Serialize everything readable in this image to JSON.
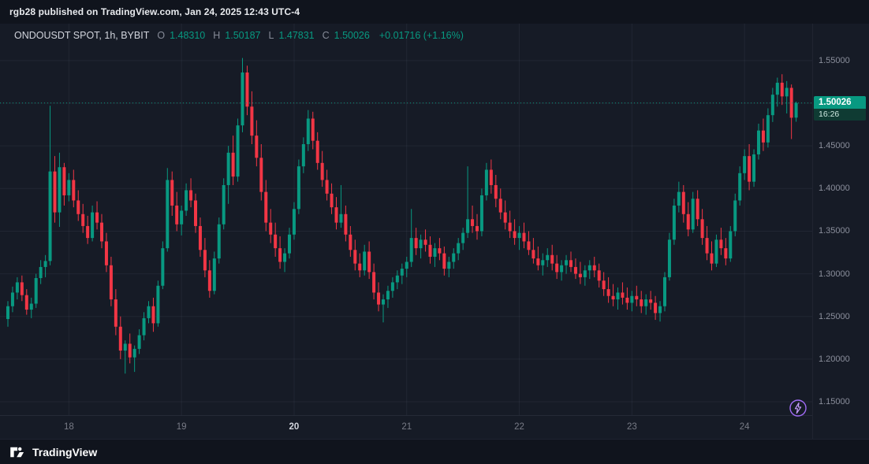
{
  "attribution": {
    "text": "rgb28 published on TradingView.com, Jan 24, 2025 12:43 UTC-4"
  },
  "legend": {
    "symbol_text": "ONDOUSDT SPOT, 1h, BYBIT",
    "open_label": "O",
    "open": "1.48310",
    "high_label": "H",
    "high": "1.50187",
    "low_label": "L",
    "low": "1.47831",
    "close_label": "C",
    "close": "1.50026",
    "change": "+0.01716 (+1.16%)"
  },
  "price_scale": {
    "labels": [
      "1.55000",
      "1.50000",
      "1.45000",
      "1.40000",
      "1.35000",
      "1.30000",
      "1.25000",
      "1.20000",
      "1.15000"
    ],
    "badge": {
      "price": "1.50026",
      "countdown": "16:26"
    }
  },
  "footer": {
    "brand": "TradingView"
  },
  "colors": {
    "up": "#089981",
    "down": "#f23645",
    "grid": "rgba(149,158,180,0.09)",
    "current_line": "#089981",
    "muted_text": "#787b86",
    "bright_text": "#d1d4dc"
  },
  "chart_data": {
    "type": "candlestick",
    "title": "ONDOUSDT SPOT, 1h, BYBIT",
    "symbol": "ONDOUSDT",
    "market": "SPOT",
    "interval": "1h",
    "exchange": "BYBIT",
    "current_price": 1.50026,
    "ylim": [
      1.1343,
      1.5933
    ],
    "x_start": 10,
    "x_step": 5.95,
    "grid": true,
    "price_ticks": [
      1.55,
      1.5,
      1.45,
      1.4,
      1.35,
      1.3,
      1.25,
      1.2,
      1.15
    ],
    "day_ticks": [
      {
        "i": 13,
        "label": "18",
        "strong": false
      },
      {
        "i": 37,
        "label": "19",
        "strong": false
      },
      {
        "i": 61,
        "label": "20",
        "strong": true
      },
      {
        "i": 85,
        "label": "21",
        "strong": false
      },
      {
        "i": 109,
        "label": "22",
        "strong": false
      },
      {
        "i": 133,
        "label": "23",
        "strong": false
      },
      {
        "i": 157,
        "label": "24",
        "strong": false
      }
    ],
    "candles": [
      [
        1.247,
        1.268,
        1.238,
        1.262
      ],
      [
        1.262,
        1.285,
        1.255,
        1.278
      ],
      [
        1.278,
        1.296,
        1.27,
        1.29
      ],
      [
        1.29,
        1.298,
        1.268,
        1.275
      ],
      [
        1.275,
        1.282,
        1.252,
        1.258
      ],
      [
        1.258,
        1.272,
        1.248,
        1.265
      ],
      [
        1.265,
        1.3,
        1.26,
        1.295
      ],
      [
        1.295,
        1.316,
        1.288,
        1.308
      ],
      [
        1.308,
        1.322,
        1.296,
        1.315
      ],
      [
        1.315,
        1.497,
        1.31,
        1.42
      ],
      [
        1.42,
        1.438,
        1.36,
        1.372
      ],
      [
        1.372,
        1.442,
        1.355,
        1.425
      ],
      [
        1.425,
        1.43,
        1.38,
        1.392
      ],
      [
        1.392,
        1.418,
        1.385,
        1.41
      ],
      [
        1.41,
        1.422,
        1.378,
        1.386
      ],
      [
        1.386,
        1.398,
        1.362,
        1.37
      ],
      [
        1.37,
        1.382,
        1.348,
        1.356
      ],
      [
        1.356,
        1.368,
        1.335,
        1.342
      ],
      [
        1.342,
        1.38,
        1.338,
        1.372
      ],
      [
        1.372,
        1.385,
        1.352,
        1.36
      ],
      [
        1.36,
        1.37,
        1.33,
        1.338
      ],
      [
        1.338,
        1.348,
        1.302,
        1.31
      ],
      [
        1.31,
        1.32,
        1.262,
        1.27
      ],
      [
        1.27,
        1.282,
        1.228,
        1.238
      ],
      [
        1.238,
        1.25,
        1.2,
        1.21
      ],
      [
        1.21,
        1.222,
        1.183,
        1.218
      ],
      [
        1.218,
        1.23,
        1.195,
        1.202
      ],
      [
        1.202,
        1.216,
        1.185,
        1.212
      ],
      [
        1.212,
        1.235,
        1.206,
        1.228
      ],
      [
        1.228,
        1.255,
        1.222,
        1.248
      ],
      [
        1.248,
        1.268,
        1.242,
        1.262
      ],
      [
        1.262,
        1.272,
        1.232,
        1.242
      ],
      [
        1.242,
        1.292,
        1.238,
        1.286
      ],
      [
        1.286,
        1.338,
        1.282,
        1.33
      ],
      [
        1.33,
        1.424,
        1.326,
        1.41
      ],
      [
        1.41,
        1.42,
        1.368,
        1.38
      ],
      [
        1.38,
        1.396,
        1.35,
        1.358
      ],
      [
        1.358,
        1.38,
        1.345,
        1.374
      ],
      [
        1.374,
        1.406,
        1.368,
        1.398
      ],
      [
        1.398,
        1.412,
        1.378,
        1.386
      ],
      [
        1.386,
        1.394,
        1.348,
        1.356
      ],
      [
        1.356,
        1.366,
        1.32,
        1.328
      ],
      [
        1.328,
        1.342,
        1.296,
        1.304
      ],
      [
        1.304,
        1.316,
        1.272,
        1.28
      ],
      [
        1.28,
        1.326,
        1.276,
        1.318
      ],
      [
        1.318,
        1.366,
        1.312,
        1.358
      ],
      [
        1.358,
        1.412,
        1.352,
        1.404
      ],
      [
        1.404,
        1.45,
        1.382,
        1.442
      ],
      [
        1.442,
        1.462,
        1.404,
        1.414
      ],
      [
        1.414,
        1.482,
        1.408,
        1.474
      ],
      [
        1.474,
        1.553,
        1.466,
        1.536
      ],
      [
        1.536,
        1.544,
        1.486,
        1.496
      ],
      [
        1.496,
        1.514,
        1.452,
        1.462
      ],
      [
        1.462,
        1.48,
        1.426,
        1.436
      ],
      [
        1.436,
        1.452,
        1.386,
        1.396
      ],
      [
        1.396,
        1.41,
        1.35,
        1.36
      ],
      [
        1.36,
        1.376,
        1.336,
        1.346
      ],
      [
        1.346,
        1.36,
        1.32,
        1.33
      ],
      [
        1.33,
        1.344,
        1.306,
        1.314
      ],
      [
        1.314,
        1.33,
        1.302,
        1.324
      ],
      [
        1.324,
        1.354,
        1.318,
        1.346
      ],
      [
        1.346,
        1.384,
        1.34,
        1.376
      ],
      [
        1.376,
        1.434,
        1.37,
        1.426
      ],
      [
        1.426,
        1.46,
        1.418,
        1.452
      ],
      [
        1.452,
        1.492,
        1.444,
        1.482
      ],
      [
        1.482,
        1.49,
        1.446,
        1.456
      ],
      [
        1.456,
        1.466,
        1.422,
        1.43
      ],
      [
        1.43,
        1.444,
        1.402,
        1.41
      ],
      [
        1.41,
        1.422,
        1.386,
        1.394
      ],
      [
        1.394,
        1.406,
        1.37,
        1.378
      ],
      [
        1.378,
        1.39,
        1.352,
        1.36
      ],
      [
        1.36,
        1.404,
        1.354,
        1.37
      ],
      [
        1.37,
        1.38,
        1.338,
        1.346
      ],
      [
        1.346,
        1.356,
        1.32,
        1.328
      ],
      [
        1.328,
        1.34,
        1.304,
        1.312
      ],
      [
        1.312,
        1.324,
        1.296,
        1.304
      ],
      [
        1.304,
        1.334,
        1.298,
        1.326
      ],
      [
        1.326,
        1.338,
        1.294,
        1.302
      ],
      [
        1.302,
        1.312,
        1.27,
        1.278
      ],
      [
        1.278,
        1.29,
        1.256,
        1.264
      ],
      [
        1.264,
        1.276,
        1.243,
        1.27
      ],
      [
        1.27,
        1.286,
        1.26,
        1.28
      ],
      [
        1.28,
        1.296,
        1.272,
        1.29
      ],
      [
        1.29,
        1.304,
        1.282,
        1.298
      ],
      [
        1.298,
        1.312,
        1.288,
        1.306
      ],
      [
        1.306,
        1.32,
        1.296,
        1.314
      ],
      [
        1.314,
        1.376,
        1.308,
        1.342
      ],
      [
        1.342,
        1.354,
        1.322,
        1.33
      ],
      [
        1.33,
        1.346,
        1.318,
        1.34
      ],
      [
        1.34,
        1.352,
        1.326,
        1.334
      ],
      [
        1.334,
        1.344,
        1.312,
        1.32
      ],
      [
        1.32,
        1.336,
        1.308,
        1.33
      ],
      [
        1.33,
        1.342,
        1.316,
        1.324
      ],
      [
        1.324,
        1.332,
        1.298,
        1.306
      ],
      [
        1.306,
        1.32,
        1.296,
        1.314
      ],
      [
        1.314,
        1.33,
        1.306,
        1.324
      ],
      [
        1.324,
        1.342,
        1.316,
        1.336
      ],
      [
        1.336,
        1.354,
        1.328,
        1.348
      ],
      [
        1.348,
        1.426,
        1.342,
        1.364
      ],
      [
        1.364,
        1.38,
        1.348,
        1.356
      ],
      [
        1.356,
        1.37,
        1.34,
        1.35
      ],
      [
        1.35,
        1.4,
        1.344,
        1.392
      ],
      [
        1.392,
        1.43,
        1.386,
        1.422
      ],
      [
        1.422,
        1.434,
        1.394,
        1.404
      ],
      [
        1.404,
        1.416,
        1.378,
        1.388
      ],
      [
        1.388,
        1.4,
        1.364,
        1.372
      ],
      [
        1.372,
        1.386,
        1.352,
        1.36
      ],
      [
        1.36,
        1.374,
        1.342,
        1.35
      ],
      [
        1.35,
        1.364,
        1.334,
        1.342
      ],
      [
        1.342,
        1.356,
        1.328,
        1.348
      ],
      [
        1.348,
        1.36,
        1.33,
        1.338
      ],
      [
        1.338,
        1.35,
        1.322,
        1.328
      ],
      [
        1.328,
        1.342,
        1.312,
        1.318
      ],
      [
        1.318,
        1.332,
        1.304,
        1.31
      ],
      [
        1.31,
        1.324,
        1.298,
        1.316
      ],
      [
        1.316,
        1.33,
        1.308,
        1.322
      ],
      [
        1.322,
        1.334,
        1.304,
        1.312
      ],
      [
        1.312,
        1.322,
        1.294,
        1.302
      ],
      [
        1.302,
        1.316,
        1.292,
        1.31
      ],
      [
        1.31,
        1.322,
        1.3,
        1.316
      ],
      [
        1.316,
        1.326,
        1.302,
        1.308
      ],
      [
        1.308,
        1.318,
        1.294,
        1.3
      ],
      [
        1.3,
        1.314,
        1.288,
        1.296
      ],
      [
        1.296,
        1.31,
        1.286,
        1.304
      ],
      [
        1.304,
        1.316,
        1.294,
        1.31
      ],
      [
        1.31,
        1.32,
        1.296,
        1.304
      ],
      [
        1.304,
        1.312,
        1.284,
        1.292
      ],
      [
        1.292,
        1.302,
        1.274,
        1.282
      ],
      [
        1.282,
        1.296,
        1.266,
        1.274
      ],
      [
        1.274,
        1.288,
        1.262,
        1.27
      ],
      [
        1.27,
        1.284,
        1.258,
        1.278
      ],
      [
        1.278,
        1.29,
        1.264,
        1.272
      ],
      [
        1.272,
        1.284,
        1.258,
        1.266
      ],
      [
        1.266,
        1.28,
        1.256,
        1.274
      ],
      [
        1.274,
        1.286,
        1.262,
        1.27
      ],
      [
        1.27,
        1.28,
        1.254,
        1.262
      ],
      [
        1.262,
        1.276,
        1.252,
        1.27
      ],
      [
        1.27,
        1.28,
        1.258,
        1.266
      ],
      [
        1.266,
        1.274,
        1.246,
        1.254
      ],
      [
        1.254,
        1.268,
        1.244,
        1.262
      ],
      [
        1.262,
        1.302,
        1.256,
        1.296
      ],
      [
        1.296,
        1.348,
        1.292,
        1.34
      ],
      [
        1.34,
        1.388,
        1.334,
        1.38
      ],
      [
        1.38,
        1.408,
        1.372,
        1.396
      ],
      [
        1.396,
        1.404,
        1.36,
        1.37
      ],
      [
        1.37,
        1.384,
        1.344,
        1.352
      ],
      [
        1.352,
        1.396,
        1.348,
        1.388
      ],
      [
        1.388,
        1.398,
        1.356,
        1.364
      ],
      [
        1.364,
        1.376,
        1.334,
        1.342
      ],
      [
        1.342,
        1.356,
        1.316,
        1.324
      ],
      [
        1.324,
        1.338,
        1.304,
        1.312
      ],
      [
        1.312,
        1.346,
        1.308,
        1.34
      ],
      [
        1.34,
        1.354,
        1.322,
        1.33
      ],
      [
        1.33,
        1.342,
        1.31,
        1.318
      ],
      [
        1.318,
        1.356,
        1.314,
        1.35
      ],
      [
        1.35,
        1.394,
        1.344,
        1.386
      ],
      [
        1.386,
        1.426,
        1.38,
        1.418
      ],
      [
        1.418,
        1.446,
        1.41,
        1.438
      ],
      [
        1.438,
        1.452,
        1.398,
        1.408
      ],
      [
        1.408,
        1.446,
        1.402,
        1.44
      ],
      [
        1.44,
        1.476,
        1.434,
        1.468
      ],
      [
        1.468,
        1.482,
        1.444,
        1.454
      ],
      [
        1.454,
        1.494,
        1.448,
        1.486
      ],
      [
        1.486,
        1.518,
        1.478,
        1.51
      ],
      [
        1.51,
        1.53,
        1.496,
        1.524
      ],
      [
        1.524,
        1.534,
        1.498,
        1.508
      ],
      [
        1.508,
        1.526,
        1.488,
        1.518
      ],
      [
        1.518,
        1.522,
        1.458,
        1.483
      ],
      [
        1.4831,
        1.50187,
        1.47831,
        1.50026
      ]
    ]
  }
}
